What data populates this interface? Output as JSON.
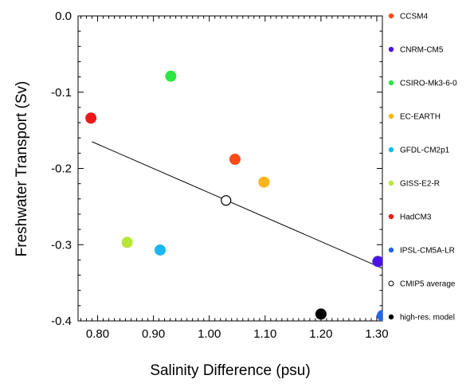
{
  "chart_data": {
    "type": "scatter",
    "title": "",
    "xlabel": "Salinity Difference (psu)",
    "ylabel": "Freshwater Transport (Sv)",
    "xlim": [
      0.765,
      1.31
    ],
    "ylim": [
      -0.4,
      0.0
    ],
    "x_ticks": [
      0.8,
      0.9,
      1.0,
      1.1,
      1.2,
      1.3
    ],
    "x_tick_labels": [
      "0.80",
      "0.90",
      "1.00",
      "1.10",
      "1.20",
      "1.30"
    ],
    "y_ticks": [
      0.0,
      -0.1,
      -0.2,
      -0.3,
      -0.4
    ],
    "y_tick_labels": [
      "0.0",
      "-0.1",
      "-0.2",
      "-0.3",
      "-0.4"
    ],
    "grid": false,
    "legend_position": "right",
    "series": [
      {
        "name": "CCSM4",
        "color": "#ff4a1a",
        "marker": "filled-circle",
        "points": [
          [
            1.046,
            -0.188
          ]
        ]
      },
      {
        "name": "CNRM-CM5",
        "color": "#4a14e6",
        "marker": "filled-circle",
        "points": [
          [
            1.302,
            -0.322
          ]
        ]
      },
      {
        "name": "CSIRO-Mk3-6-0",
        "color": "#2ee640",
        "marker": "filled-circle",
        "points": [
          [
            0.931,
            -0.079
          ]
        ]
      },
      {
        "name": "EC-EARTH",
        "color": "#ffb31a",
        "marker": "filled-circle",
        "points": [
          [
            1.098,
            -0.218
          ]
        ]
      },
      {
        "name": "GFDL-CM2p1",
        "color": "#1ab8f0",
        "marker": "filled-circle",
        "points": [
          [
            0.912,
            -0.307
          ]
        ]
      },
      {
        "name": "GISS-E2-R",
        "color": "#b8e637",
        "marker": "filled-circle",
        "points": [
          [
            0.853,
            -0.297
          ]
        ]
      },
      {
        "name": "HadCM3",
        "color": "#ee1a1a",
        "marker": "filled-circle",
        "points": [
          [
            0.788,
            -0.134
          ]
        ]
      },
      {
        "name": "IPSL-CM5A-LR",
        "color": "#2266f0",
        "marker": "filled-circle",
        "points": [
          [
            1.31,
            -0.393
          ]
        ]
      },
      {
        "name": "CMIP5 average",
        "color": "#000000",
        "marker": "open-circle",
        "points": [
          [
            1.03,
            -0.242
          ]
        ]
      },
      {
        "name": "high-res. model",
        "color": "#000000",
        "marker": "filled-circle",
        "points": [
          [
            1.2,
            -0.391
          ]
        ]
      }
    ],
    "regression_line": {
      "x": [
        0.79,
        1.31
      ],
      "y": [
        -0.165,
        -0.331
      ],
      "color": "#000000"
    }
  }
}
